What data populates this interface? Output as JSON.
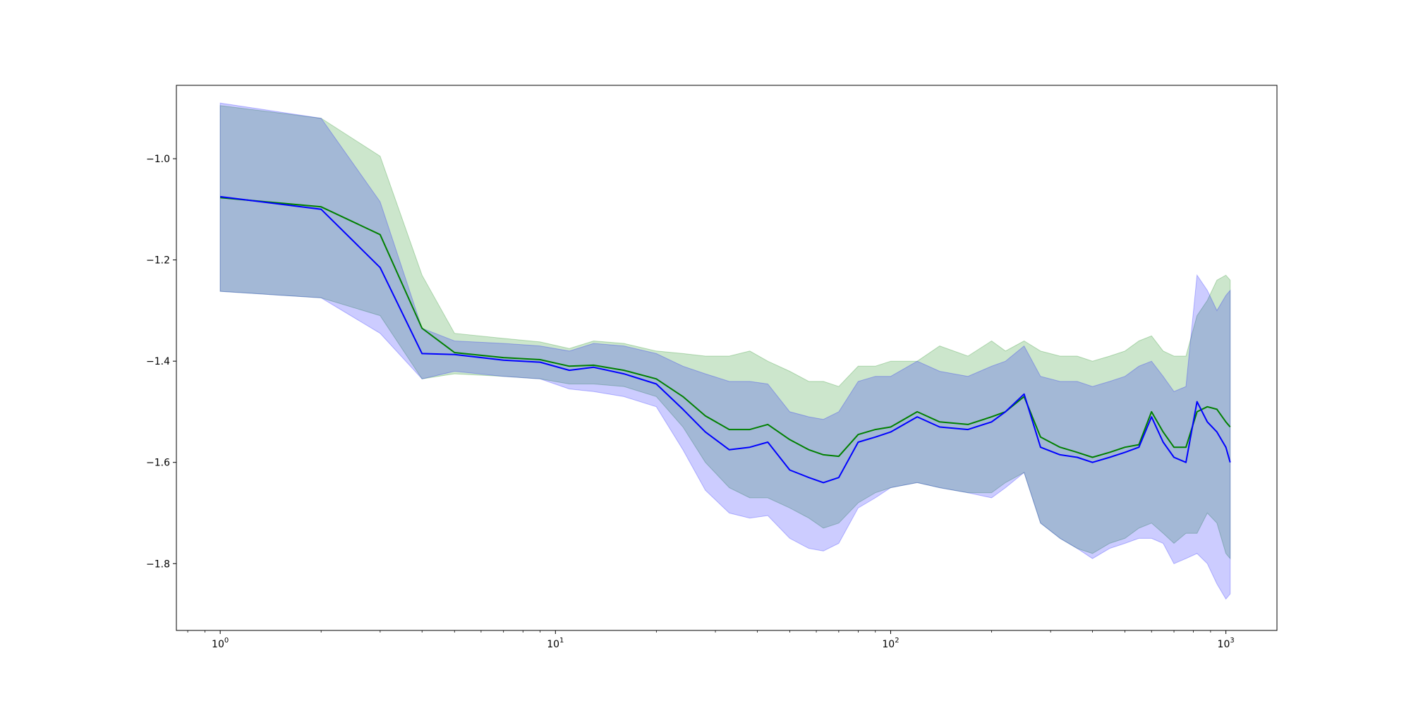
{
  "chart_data": {
    "type": "area",
    "title": "",
    "xlabel": "",
    "ylabel": "",
    "x_scale": "log",
    "xlim": [
      0.74,
      1420
    ],
    "ylim": [
      -1.932,
      -0.855
    ],
    "grid": false,
    "legend": "none",
    "x_ticks": [
      {
        "value": 1,
        "base": "10",
        "exp": "0"
      },
      {
        "value": 10,
        "base": "10",
        "exp": "1"
      },
      {
        "value": 100,
        "base": "10",
        "exp": "2"
      },
      {
        "value": 1000,
        "base": "10",
        "exp": "3"
      }
    ],
    "y_ticks": [
      {
        "value": -1.0,
        "label": "−1.0"
      },
      {
        "value": -1.2,
        "label": "−1.2"
      },
      {
        "value": -1.4,
        "label": "−1.4"
      },
      {
        "value": -1.6,
        "label": "−1.6"
      },
      {
        "value": -1.8,
        "label": "−1.8"
      }
    ],
    "series": [
      {
        "color": "#008000",
        "band_color": "#008000",
        "band_opacity": 0.2,
        "x": [
          1,
          2,
          3,
          4,
          5,
          7,
          9,
          11,
          13,
          16,
          20,
          24,
          28,
          33,
          38,
          43,
          50,
          57,
          63,
          70,
          80,
          90,
          100,
          120,
          140,
          170,
          200,
          220,
          250,
          280,
          320,
          360,
          400,
          450,
          500,
          550,
          600,
          650,
          700,
          760,
          820,
          880,
          940,
          1000,
          1030
        ],
        "mean": [
          -1.077,
          -1.095,
          -1.15,
          -1.335,
          -1.383,
          -1.393,
          -1.397,
          -1.41,
          -1.408,
          -1.418,
          -1.435,
          -1.47,
          -1.508,
          -1.535,
          -1.535,
          -1.525,
          -1.555,
          -1.575,
          -1.585,
          -1.588,
          -1.545,
          -1.535,
          -1.53,
          -1.5,
          -1.52,
          -1.525,
          -1.51,
          -1.5,
          -1.47,
          -1.55,
          -1.57,
          -1.58,
          -1.59,
          -1.58,
          -1.57,
          -1.565,
          -1.5,
          -1.54,
          -1.57,
          -1.57,
          -1.5,
          -1.49,
          -1.495,
          -1.52,
          -1.53
        ],
        "upper": [
          -0.895,
          -0.92,
          -0.995,
          -1.23,
          -1.345,
          -1.355,
          -1.362,
          -1.375,
          -1.36,
          -1.365,
          -1.38,
          -1.385,
          -1.39,
          -1.39,
          -1.38,
          -1.4,
          -1.42,
          -1.44,
          -1.44,
          -1.45,
          -1.41,
          -1.41,
          -1.4,
          -1.4,
          -1.37,
          -1.39,
          -1.36,
          -1.38,
          -1.36,
          -1.38,
          -1.39,
          -1.39,
          -1.4,
          -1.39,
          -1.38,
          -1.36,
          -1.35,
          -1.38,
          -1.39,
          -1.39,
          -1.31,
          -1.28,
          -1.24,
          -1.23,
          -1.24
        ],
        "lower": [
          -1.262,
          -1.275,
          -1.31,
          -1.435,
          -1.425,
          -1.43,
          -1.435,
          -1.445,
          -1.445,
          -1.45,
          -1.47,
          -1.53,
          -1.6,
          -1.65,
          -1.67,
          -1.67,
          -1.69,
          -1.71,
          -1.73,
          -1.72,
          -1.68,
          -1.66,
          -1.65,
          -1.64,
          -1.65,
          -1.66,
          -1.66,
          -1.64,
          -1.62,
          -1.72,
          -1.75,
          -1.77,
          -1.78,
          -1.76,
          -1.75,
          -1.73,
          -1.72,
          -1.74,
          -1.76,
          -1.74,
          -1.74,
          -1.7,
          -1.72,
          -1.78,
          -1.79
        ]
      },
      {
        "color": "#0000ff",
        "band_color": "#0000ff",
        "band_opacity": 0.2,
        "x": [
          1,
          2,
          3,
          4,
          5,
          7,
          9,
          11,
          13,
          16,
          20,
          24,
          28,
          33,
          38,
          43,
          50,
          57,
          63,
          70,
          80,
          90,
          100,
          120,
          140,
          170,
          200,
          220,
          250,
          280,
          320,
          360,
          400,
          450,
          500,
          550,
          600,
          650,
          700,
          760,
          820,
          880,
          940,
          1000,
          1030
        ],
        "mean": [
          -1.075,
          -1.1,
          -1.215,
          -1.385,
          -1.387,
          -1.398,
          -1.402,
          -1.418,
          -1.412,
          -1.425,
          -1.445,
          -1.495,
          -1.54,
          -1.575,
          -1.57,
          -1.56,
          -1.615,
          -1.63,
          -1.64,
          -1.63,
          -1.56,
          -1.55,
          -1.54,
          -1.51,
          -1.53,
          -1.535,
          -1.52,
          -1.5,
          -1.465,
          -1.57,
          -1.585,
          -1.59,
          -1.6,
          -1.59,
          -1.58,
          -1.57,
          -1.51,
          -1.56,
          -1.59,
          -1.6,
          -1.48,
          -1.52,
          -1.54,
          -1.57,
          -1.6
        ],
        "upper": [
          -0.89,
          -0.92,
          -1.085,
          -1.335,
          -1.36,
          -1.365,
          -1.37,
          -1.38,
          -1.365,
          -1.37,
          -1.385,
          -1.41,
          -1.425,
          -1.44,
          -1.44,
          -1.445,
          -1.5,
          -1.51,
          -1.515,
          -1.5,
          -1.44,
          -1.43,
          -1.43,
          -1.4,
          -1.42,
          -1.43,
          -1.41,
          -1.4,
          -1.37,
          -1.43,
          -1.44,
          -1.44,
          -1.45,
          -1.44,
          -1.43,
          -1.41,
          -1.4,
          -1.43,
          -1.46,
          -1.45,
          -1.23,
          -1.26,
          -1.3,
          -1.27,
          -1.26
        ],
        "lower": [
          -1.262,
          -1.275,
          -1.345,
          -1.435,
          -1.42,
          -1.43,
          -1.435,
          -1.455,
          -1.46,
          -1.47,
          -1.49,
          -1.575,
          -1.655,
          -1.7,
          -1.71,
          -1.705,
          -1.75,
          -1.77,
          -1.775,
          -1.76,
          -1.69,
          -1.67,
          -1.65,
          -1.64,
          -1.65,
          -1.66,
          -1.67,
          -1.65,
          -1.62,
          -1.72,
          -1.75,
          -1.77,
          -1.79,
          -1.77,
          -1.76,
          -1.75,
          -1.75,
          -1.76,
          -1.8,
          -1.79,
          -1.78,
          -1.8,
          -1.84,
          -1.87,
          -1.86
        ]
      }
    ]
  }
}
